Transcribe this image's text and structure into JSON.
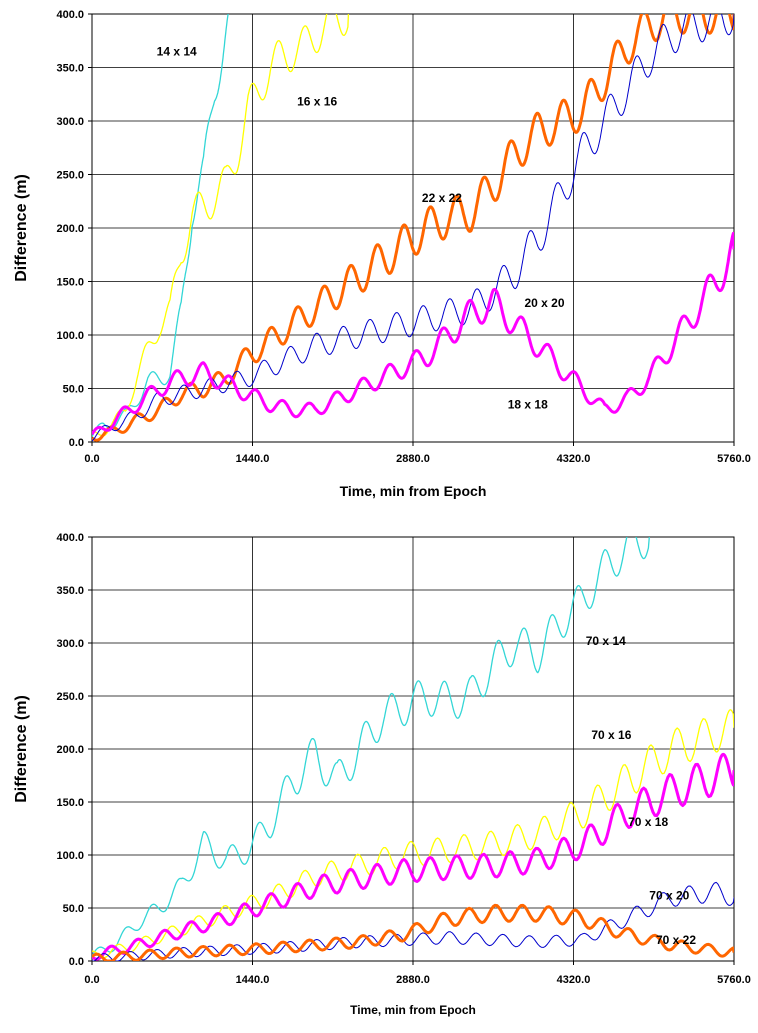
{
  "chart_data": [
    {
      "type": "line",
      "title": "",
      "xlabel": "Time, min from Epoch",
      "ylabel": "Difference (m)",
      "xlim": [
        0,
        5760
      ],
      "ylim": [
        0,
        400
      ],
      "x_ticks": [
        "0.0",
        "1440.0",
        "2880.0",
        "4320.0",
        "5760.0"
      ],
      "y_ticks": [
        "0.0",
        "50.0",
        "100.0",
        "150.0",
        "200.0",
        "250.0",
        "300.0",
        "350.0",
        "400.0"
      ],
      "grid": true,
      "legend": "none (inline series labels)",
      "series": [
        {
          "name": "14 x 14",
          "color": "#33d6d6",
          "stroke_width": 1.3,
          "label_pos": [
            580,
            365
          ],
          "x": [
            0,
            100,
            200,
            300,
            400,
            500,
            600,
            700,
            800,
            900,
            1000,
            1100,
            1200,
            1300,
            1400
          ],
          "y": [
            5,
            15,
            18,
            25,
            40,
            55,
            60,
            65,
            120,
            220,
            250,
            330,
            380,
            420,
            460
          ]
        },
        {
          "name": "16 x 16",
          "color": "#ffff00",
          "stroke_width": 1.3,
          "label_pos": [
            1840,
            318
          ],
          "x": [
            0,
            100,
            200,
            300,
            400,
            500,
            600,
            700,
            800,
            900,
            1000,
            1100,
            1200,
            1300,
            1400,
            1500,
            1600,
            1700,
            1800,
            1900,
            2000,
            2100,
            2200,
            2300
          ],
          "y": [
            5,
            10,
            18,
            30,
            60,
            85,
            110,
            120,
            180,
            210,
            220,
            230,
            240,
            270,
            310,
            330,
            350,
            360,
            365,
            370,
            380,
            390,
            395,
            400
          ]
        },
        {
          "name": "22 x 22",
          "color": "#ff6600",
          "stroke_width": 3,
          "label_pos": [
            2960,
            228
          ],
          "x": [
            0,
            200,
            400,
            600,
            800,
            1000,
            1200,
            1400,
            1600,
            1800,
            2000,
            2200,
            2400,
            2600,
            2800,
            3000,
            3200,
            3400,
            3600,
            3800,
            4000,
            4200,
            4400,
            4600,
            4800,
            5000,
            5200,
            5400,
            5600,
            5760
          ],
          "y": [
            5,
            10,
            20,
            30,
            45,
            50,
            60,
            80,
            95,
            110,
            125,
            140,
            155,
            170,
            185,
            200,
            210,
            215,
            240,
            270,
            290,
            300,
            310,
            340,
            370,
            390,
            400,
            400,
            400,
            400
          ]
        },
        {
          "name": "20 x 20",
          "color": "#0000cc",
          "stroke_width": 1,
          "label_pos": [
            3880,
            130
          ],
          "x": [
            0,
            200,
            400,
            600,
            800,
            1000,
            1200,
            1400,
            1600,
            1800,
            2000,
            2200,
            2400,
            2600,
            2800,
            3000,
            3200,
            3400,
            3600,
            3800,
            4000,
            4200,
            4400,
            4600,
            4800,
            5000,
            5200,
            5400,
            5600,
            5760
          ],
          "y": [
            5,
            15,
            25,
            40,
            45,
            50,
            55,
            60,
            70,
            80,
            90,
            95,
            100,
            105,
            110,
            115,
            120,
            125,
            140,
            160,
            190,
            230,
            270,
            300,
            330,
            360,
            380,
            390,
            395,
            400
          ]
        },
        {
          "name": "18 x 18",
          "color": "#ff00ff",
          "stroke_width": 3,
          "label_pos": [
            3730,
            35
          ],
          "x": [
            0,
            200,
            400,
            600,
            800,
            1000,
            1200,
            1400,
            1600,
            1800,
            2000,
            2200,
            2400,
            2600,
            2800,
            3000,
            3200,
            3400,
            3600,
            3800,
            4000,
            4200,
            4400,
            4600,
            4800,
            5000,
            5200,
            5400,
            5600,
            5760
          ],
          "y": [
            5,
            20,
            35,
            50,
            60,
            65,
            55,
            45,
            35,
            30,
            30,
            40,
            50,
            60,
            70,
            80,
            100,
            120,
            130,
            110,
            90,
            70,
            50,
            30,
            40,
            60,
            90,
            120,
            150,
            180
          ]
        }
      ]
    },
    {
      "type": "line",
      "title": "",
      "xlabel": "Time, min from Epoch",
      "ylabel": "Difference (m)",
      "xlim": [
        0,
        5760
      ],
      "ylim": [
        0,
        400
      ],
      "x_ticks": [
        "0.0",
        "1440.0",
        "2880.0",
        "4320.0",
        "5760.0"
      ],
      "y_ticks": [
        "0.0",
        "50.0",
        "100.0",
        "150.0",
        "200.0",
        "250.0",
        "300.0",
        "350.0",
        "400.0"
      ],
      "grid": true,
      "legend": "none (inline series labels)",
      "series": [
        {
          "name": "70 x 14",
          "color": "#33d6d6",
          "stroke_width": 1.3,
          "label_pos": [
            4430,
            302
          ],
          "x": [
            0,
            200,
            400,
            600,
            800,
            1000,
            1200,
            1400,
            1600,
            1800,
            2000,
            2200,
            2400,
            2600,
            2800,
            3000,
            3200,
            3400,
            3600,
            3800,
            4000,
            4200,
            4400,
            4600,
            4800,
            5000
          ],
          "y": [
            5,
            15,
            35,
            50,
            70,
            110,
            95,
            105,
            130,
            170,
            195,
            170,
            200,
            230,
            240,
            250,
            245,
            250,
            280,
            300,
            290,
            320,
            340,
            370,
            390,
            400
          ]
        },
        {
          "name": "70 x 16",
          "color": "#ffff00",
          "stroke_width": 1.3,
          "label_pos": [
            4480,
            213
          ],
          "x": [
            0,
            400,
            800,
            1200,
            1600,
            2000,
            2400,
            2800,
            3200,
            3600,
            4000,
            4400,
            4800,
            5200,
            5600,
            5760
          ],
          "y": [
            5,
            15,
            30,
            45,
            60,
            80,
            90,
            100,
            105,
            110,
            120,
            140,
            170,
            200,
            215,
            220
          ]
        },
        {
          "name": "70 x 18",
          "color": "#ff00ff",
          "stroke_width": 3,
          "label_pos": [
            4810,
            131
          ],
          "x": [
            0,
            400,
            800,
            1200,
            1600,
            2000,
            2400,
            2800,
            3200,
            3600,
            4000,
            4400,
            4800,
            5200,
            5600,
            5760
          ],
          "y": [
            5,
            15,
            28,
            40,
            55,
            70,
            78,
            85,
            88,
            90,
            95,
            110,
            140,
            160,
            175,
            180
          ]
        },
        {
          "name": "70 x 20",
          "color": "#0000cc",
          "stroke_width": 1,
          "label_pos": [
            5000,
            62
          ],
          "x": [
            0,
            400,
            800,
            1200,
            1600,
            2000,
            2400,
            2800,
            3200,
            3600,
            4000,
            4400,
            4800,
            5200,
            5600,
            5760
          ],
          "y": [
            2,
            5,
            8,
            10,
            12,
            15,
            18,
            20,
            22,
            20,
            18,
            20,
            40,
            60,
            65,
            60
          ]
        },
        {
          "name": "70 x 22",
          "color": "#ff6600",
          "stroke_width": 3,
          "label_pos": [
            5060,
            20
          ],
          "x": [
            0,
            400,
            800,
            1200,
            1600,
            2000,
            2400,
            2800,
            3200,
            3600,
            4000,
            4400,
            4800,
            5200,
            5600,
            5760
          ],
          "y": [
            2,
            5,
            8,
            10,
            12,
            15,
            18,
            25,
            40,
            45,
            45,
            40,
            25,
            15,
            10,
            8
          ]
        }
      ]
    }
  ]
}
